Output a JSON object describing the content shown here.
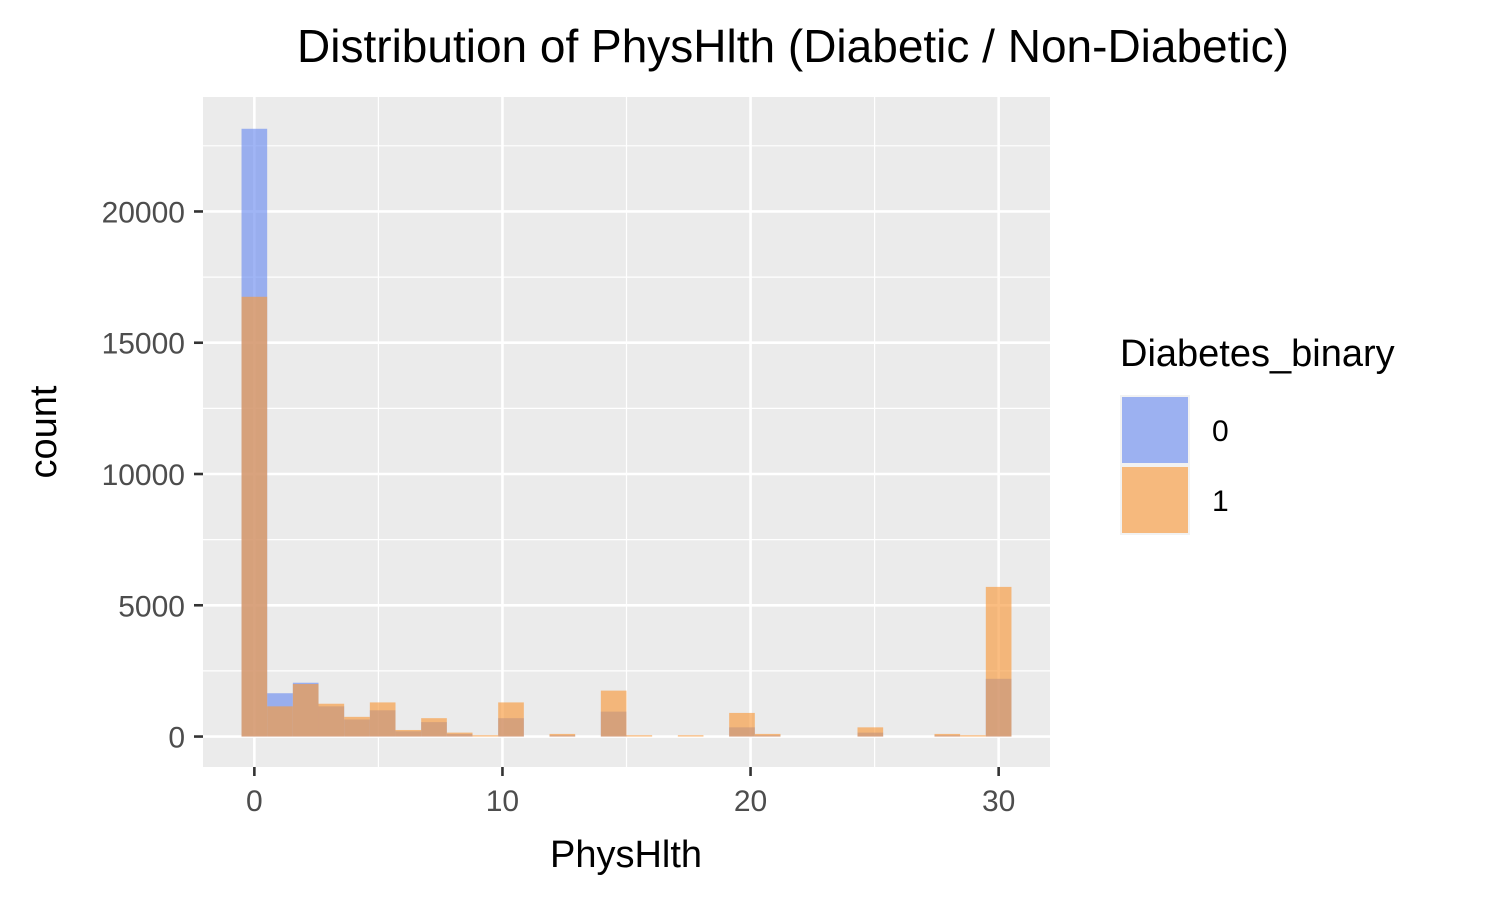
{
  "chart_data": {
    "type": "bar",
    "title": "Distribution of PhysHlth (Diabetic / Non-Diabetic)",
    "xlabel": "PhysHlth",
    "ylabel": "count",
    "x_ticks": [
      "0",
      "10",
      "20",
      "30"
    ],
    "y_ticks": [
      "0",
      "5000",
      "10000",
      "15000",
      "20000"
    ],
    "xlim": [
      -2.07,
      32.07
    ],
    "ylim": [
      -1160,
      24360
    ],
    "bin_width": 1.034,
    "bin_centers": [
      0,
      1.034,
      2.069,
      3.103,
      4.138,
      5.172,
      6.207,
      7.241,
      8.276,
      9.31,
      10.345,
      11.379,
      12.414,
      13.448,
      14.483,
      15.517,
      16.552,
      17.586,
      18.621,
      19.655,
      20.69,
      21.724,
      22.759,
      23.793,
      24.828,
      25.862,
      26.897,
      27.931,
      28.966,
      30
    ],
    "grid": true,
    "legend": {
      "title": "Diabetes_binary",
      "position": "right"
    },
    "series": [
      {
        "name": "0",
        "color": "#6D8EF0",
        "values": [
          23150,
          1650,
          2050,
          1150,
          650,
          1000,
          200,
          550,
          100,
          0,
          700,
          0,
          50,
          0,
          950,
          0,
          0,
          0,
          0,
          350,
          50,
          0,
          0,
          0,
          150,
          0,
          0,
          50,
          0,
          2200
        ]
      },
      {
        "name": "1",
        "color": "#F79A3E",
        "values": [
          16750,
          1150,
          2000,
          1250,
          750,
          1300,
          250,
          700,
          150,
          50,
          1300,
          0,
          100,
          0,
          1750,
          50,
          0,
          50,
          0,
          900,
          100,
          0,
          0,
          0,
          350,
          0,
          0,
          100,
          50,
          5700
        ]
      }
    ]
  }
}
